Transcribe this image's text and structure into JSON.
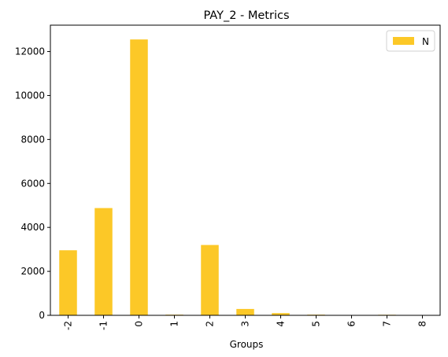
{
  "chart_data": {
    "type": "bar",
    "title": "PAY_2 - Metrics",
    "xlabel": "Groups",
    "ylabel": "",
    "categories": [
      "-2",
      "-1",
      "0",
      "1",
      "2",
      "3",
      "4",
      "5",
      "6",
      "7",
      "8"
    ],
    "series": [
      {
        "name": "N",
        "values": [
          2960,
          4880,
          12550,
          30,
          3200,
          290,
          100,
          30,
          10,
          25,
          1
        ],
        "color": "#fcc827"
      }
    ],
    "ylim": [
      0,
      13200
    ],
    "yticks": [
      0,
      2000,
      4000,
      6000,
      8000,
      10000,
      12000
    ],
    "grid": false,
    "legend_position": "top-right"
  }
}
